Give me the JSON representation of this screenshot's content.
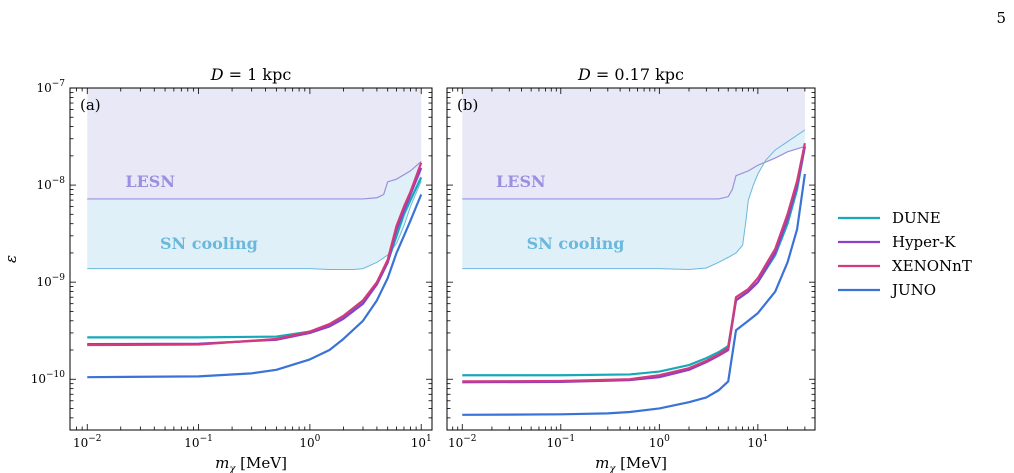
{
  "page_number": "5",
  "legend": {
    "entries": [
      {
        "name": "DUNE",
        "color": "#17a9b8"
      },
      {
        "name": "Hyper-K",
        "color": "#8c3fc9"
      },
      {
        "name": "XENONnT",
        "color": "#d13b7a"
      },
      {
        "name": "JUNO",
        "color": "#3a73d6"
      }
    ],
    "placement": "right"
  },
  "regions": {
    "lesn": {
      "label": "LESN",
      "fill": "#e8e8f6",
      "line": "#9b8fe0"
    },
    "sn_cooling": {
      "label": "SN cooling",
      "fill": "#e0f0f8",
      "line": "#6bb8dd"
    }
  },
  "chart_data": [
    {
      "type": "line",
      "panel_label": "(a)",
      "title": "D = 1 kpc",
      "title_italic_part": "D",
      "title_rest": " = 1 kpc",
      "xlabel": "m_χ [MeV]",
      "xlabel_main": "m",
      "xlabel_sub": "χ",
      "xlabel_unit": "[MeV]",
      "ylabel": "ε",
      "xscale": "log",
      "yscale": "log",
      "xlim": [
        0.007,
        12.5
      ],
      "ylim": [
        3e-11,
        1e-07
      ],
      "x_ticks": [
        {
          "value": 0.01,
          "base": "10",
          "exp": "−2"
        },
        {
          "value": 0.1,
          "base": "10",
          "exp": "−1"
        },
        {
          "value": 1,
          "base": "10",
          "exp": "0"
        },
        {
          "value": 10,
          "base": "10",
          "exp": "1"
        }
      ],
      "y_ticks": [
        {
          "value": 1e-10,
          "base": "10",
          "exp": "−10"
        },
        {
          "value": 1e-09,
          "base": "10",
          "exp": "−9"
        },
        {
          "value": 1e-08,
          "base": "10",
          "exp": "−8"
        },
        {
          "value": 1e-07,
          "base": "10",
          "exp": "−7"
        }
      ],
      "lesn_boundary": {
        "x": [
          0.01,
          3,
          4,
          4.6,
          5,
          6,
          8,
          10
        ],
        "y": [
          7.2e-09,
          7.2e-09,
          7.4e-09,
          8e-09,
          1.08e-08,
          1.15e-08,
          1.4e-08,
          1.75e-08
        ]
      },
      "lesn_label_pos": {
        "x": 0.022,
        "y": 9.5e-09
      },
      "sn_boundary": {
        "x": [
          0.01,
          0.5,
          1,
          1.5,
          2,
          2.5,
          3,
          4,
          5,
          6,
          7,
          8,
          10
        ],
        "y": [
          1.38e-09,
          1.38e-09,
          1.38e-09,
          1.35e-09,
          1.35e-09,
          1.35e-09,
          1.38e-09,
          1.6e-09,
          1.9e-09,
          2.5e-09,
          3.8e-09,
          6e-09,
          1.1e-08
        ]
      },
      "sn_label_pos": {
        "x": 0.045,
        "y": 2.2e-09
      },
      "series": [
        {
          "name": "DUNE",
          "x": [
            0.01,
            0.1,
            0.5,
            1,
            1.5,
            2,
            3,
            4,
            5,
            6,
            7,
            8,
            10
          ],
          "y": [
            2.7e-10,
            2.7e-10,
            2.75e-10,
            3.1e-10,
            3.6e-10,
            4.3e-10,
            6.2e-10,
            9.5e-10,
            1.6e-09,
            3e-09,
            5e-09,
            7e-09,
            1.2e-08
          ]
        },
        {
          "name": "Hyper-K",
          "x": [
            0.01,
            0.1,
            0.5,
            1,
            1.5,
            2,
            3,
            4,
            5,
            6,
            7,
            8,
            10
          ],
          "y": [
            2.3e-10,
            2.32e-10,
            2.55e-10,
            3e-10,
            3.5e-10,
            4.2e-10,
            6e-10,
            9.5e-10,
            1.6e-09,
            3.5e-09,
            5.5e-09,
            8e-09,
            1.5e-08
          ]
        },
        {
          "name": "XENONnT",
          "x": [
            0.01,
            0.1,
            0.5,
            1,
            1.5,
            2,
            3,
            4,
            5,
            6,
            7,
            8,
            10
          ],
          "y": [
            2.25e-10,
            2.28e-10,
            2.6e-10,
            3.1e-10,
            3.7e-10,
            4.5e-10,
            6.5e-10,
            1e-09,
            1.7e-09,
            3.8e-09,
            6e-09,
            8.5e-09,
            1.7e-08
          ]
        },
        {
          "name": "JUNO",
          "x": [
            0.01,
            0.1,
            0.3,
            0.5,
            1,
            1.5,
            2,
            3,
            4,
            5,
            6,
            7,
            8,
            10
          ],
          "y": [
            1.05e-10,
            1.07e-10,
            1.15e-10,
            1.25e-10,
            1.6e-10,
            2e-10,
            2.6e-10,
            4e-10,
            6.5e-10,
            1.1e-09,
            2e-09,
            3e-09,
            4.3e-09,
            8e-09
          ]
        }
      ]
    },
    {
      "type": "line",
      "panel_label": "(b)",
      "title": "D = 0.17 kpc",
      "title_italic_part": "D",
      "title_rest": " = 0.17 kpc",
      "xlabel": "m_χ [MeV]",
      "xlabel_main": "m",
      "xlabel_sub": "χ",
      "xlabel_unit": "[MeV]",
      "xscale": "log",
      "yscale": "log",
      "xlim": [
        0.007,
        38
      ],
      "ylim": [
        3e-11,
        1e-07
      ],
      "x_ticks": [
        {
          "value": 0.01,
          "base": "10",
          "exp": "−2"
        },
        {
          "value": 0.1,
          "base": "10",
          "exp": "−1"
        },
        {
          "value": 1,
          "base": "10",
          "exp": "0"
        },
        {
          "value": 10,
          "base": "10",
          "exp": "1"
        }
      ],
      "y_ticks": [
        {
          "value": 1e-10
        },
        {
          "value": 1e-09
        },
        {
          "value": 1e-08
        },
        {
          "value": 1e-07
        }
      ],
      "lesn_boundary": {
        "x": [
          0.01,
          4,
          5,
          5.5,
          6,
          8,
          10,
          15,
          20,
          30
        ],
        "y": [
          7.2e-09,
          7.2e-09,
          7.6e-09,
          9e-09,
          1.25e-08,
          1.4e-08,
          1.6e-08,
          1.9e-08,
          2.2e-08,
          2.5e-08
        ]
      },
      "lesn_label_pos": {
        "x": 0.022,
        "y": 9.5e-09
      },
      "sn_boundary": {
        "x": [
          0.01,
          1,
          2,
          3,
          4,
          5,
          6,
          7,
          7.5,
          8,
          9,
          10,
          12,
          15,
          20,
          30
        ],
        "y": [
          1.38e-09,
          1.38e-09,
          1.35e-09,
          1.4e-09,
          1.6e-09,
          1.8e-09,
          2e-09,
          2.4e-09,
          4e-09,
          7e-09,
          1e-08,
          1.3e-08,
          1.8e-08,
          2.3e-08,
          2.8e-08,
          3.7e-08
        ]
      },
      "sn_label_pos": {
        "x": 0.045,
        "y": 2.2e-09
      },
      "series": [
        {
          "name": "DUNE",
          "x": [
            0.01,
            0.1,
            0.5,
            1,
            2,
            3,
            4,
            5,
            6,
            8,
            10,
            15,
            20,
            25,
            30
          ],
          "y": [
            1.1e-10,
            1.1e-10,
            1.12e-10,
            1.2e-10,
            1.4e-10,
            1.65e-10,
            1.9e-10,
            2.2e-10,
            6.5e-10,
            8e-10,
            1e-09,
            1.9e-09,
            4e-09,
            9e-09,
            2.5e-08
          ]
        },
        {
          "name": "Hyper-K",
          "x": [
            0.01,
            0.1,
            0.5,
            1,
            2,
            3,
            4,
            5,
            6,
            8,
            10,
            15,
            20,
            25,
            30
          ],
          "y": [
            9.3e-11,
            9.4e-11,
            9.8e-11,
            1.05e-10,
            1.25e-10,
            1.5e-10,
            1.75e-10,
            2e-10,
            6.5e-10,
            8e-10,
            1e-09,
            2e-09,
            4.5e-09,
            1e-08,
            2.5e-08
          ]
        },
        {
          "name": "XENONnT",
          "x": [
            0.01,
            0.1,
            0.5,
            1,
            2,
            3,
            4,
            5,
            6,
            8,
            10,
            15,
            20,
            25,
            30
          ],
          "y": [
            9.5e-11,
            9.6e-11,
            1e-10,
            1.1e-10,
            1.3e-10,
            1.55e-10,
            1.8e-10,
            2.1e-10,
            7e-10,
            8.5e-10,
            1.1e-09,
            2.2e-09,
            5e-09,
            1.1e-08,
            2.7e-08
          ]
        },
        {
          "name": "JUNO",
          "x": [
            0.01,
            0.1,
            0.3,
            0.5,
            1,
            2,
            3,
            4,
            5,
            6,
            8,
            10,
            15,
            20,
            25,
            30
          ],
          "y": [
            4.3e-11,
            4.35e-11,
            4.45e-11,
            4.6e-11,
            5e-11,
            5.8e-11,
            6.5e-11,
            7.7e-11,
            9.5e-11,
            3.2e-10,
            4e-10,
            4.8e-10,
            8e-10,
            1.6e-09,
            3.5e-09,
            1.3e-08
          ]
        }
      ]
    }
  ]
}
